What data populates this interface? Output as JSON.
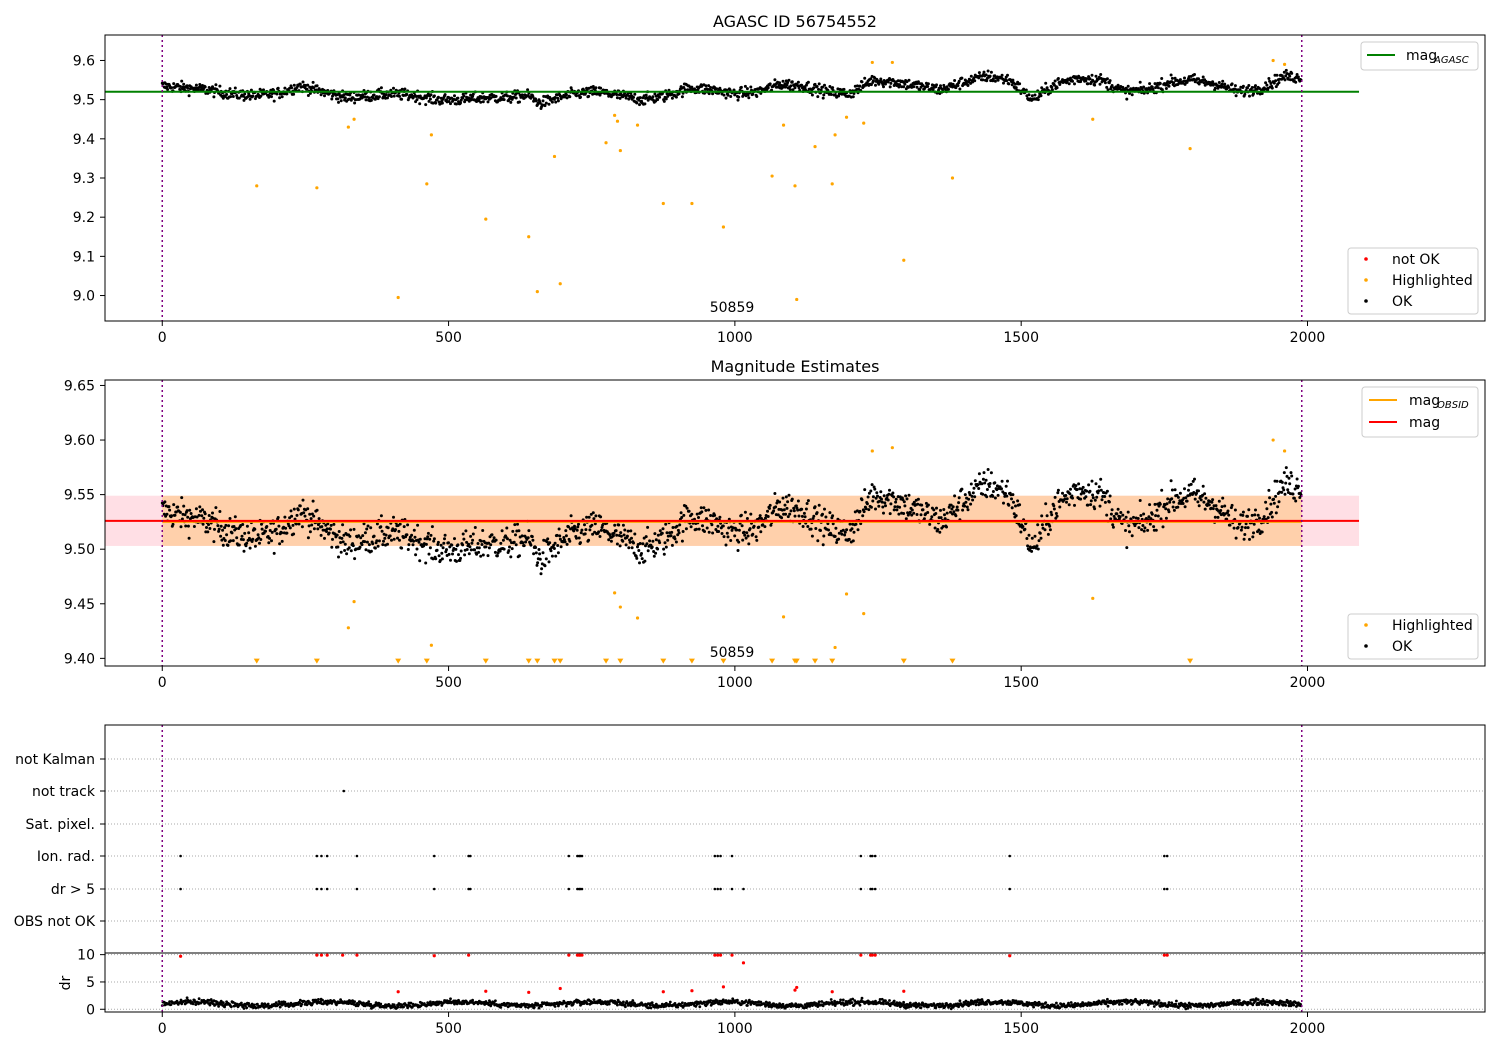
{
  "chart_data": [
    {
      "type": "scatter",
      "title": "AGASC ID 56754552",
      "xlim": [
        -100,
        2310
      ],
      "ylim": [
        8.935,
        9.665
      ],
      "x_ticks": [
        0,
        500,
        1000,
        1500,
        2000
      ],
      "y_ticks": [
        9.0,
        9.1,
        9.2,
        9.3,
        9.4,
        9.5,
        9.6
      ],
      "obsid_label": "50859",
      "obsid_label_x": 990,
      "vlines_x": [
        0,
        1990
      ],
      "hline": {
        "name": "mag_AGASC",
        "y": 9.52,
        "x_end": 2090
      },
      "legend_upper": [
        {
          "label": "mag",
          "sub": "AGASC",
          "color": "#008000",
          "marker": "line"
        }
      ],
      "legend_lower": [
        {
          "label": "not OK",
          "color": "#ff0000",
          "marker": "dot"
        },
        {
          "label": "Highlighted",
          "color": "#ffa500",
          "marker": "dot"
        },
        {
          "label": "OK",
          "color": "#000000",
          "marker": "dot"
        }
      ],
      "series": [
        {
          "name": "Highlighted",
          "color": "#ffa500",
          "points": [
            [
              165,
              9.28
            ],
            [
              270,
              9.275
            ],
            [
              325,
              9.43
            ],
            [
              335,
              9.45
            ],
            [
              412,
              8.995
            ],
            [
              462,
              9.285
            ],
            [
              470,
              9.41
            ],
            [
              565,
              9.195
            ],
            [
              640,
              9.15
            ],
            [
              655,
              9.01
            ],
            [
              685,
              9.355
            ],
            [
              695,
              9.03
            ],
            [
              775,
              9.39
            ],
            [
              790,
              9.46
            ],
            [
              795,
              9.445
            ],
            [
              800,
              9.37
            ],
            [
              830,
              9.435
            ],
            [
              875,
              9.235
            ],
            [
              925,
              9.235
            ],
            [
              980,
              9.175
            ],
            [
              1065,
              9.305
            ],
            [
              1085,
              9.435
            ],
            [
              1105,
              9.28
            ],
            [
              1108,
              8.99
            ],
            [
              1140,
              9.38
            ],
            [
              1170,
              9.285
            ],
            [
              1175,
              9.41
            ],
            [
              1195,
              9.455
            ],
            [
              1225,
              9.44
            ],
            [
              1240,
              9.595
            ],
            [
              1275,
              9.595
            ],
            [
              1295,
              9.09
            ],
            [
              1380,
              9.3
            ],
            [
              1625,
              9.45
            ],
            [
              1795,
              9.375
            ],
            [
              1940,
              9.6
            ],
            [
              1960,
              9.59
            ]
          ]
        },
        {
          "name": "OK",
          "color": "#000000",
          "baseline": [
            [
              0,
              9.535
            ],
            [
              40,
              9.53
            ],
            [
              80,
              9.525
            ],
            [
              120,
              9.515
            ],
            [
              160,
              9.51
            ],
            [
              200,
              9.515
            ],
            [
              240,
              9.535
            ],
            [
              280,
              9.52
            ],
            [
              320,
              9.505
            ],
            [
              360,
              9.51
            ],
            [
              400,
              9.515
            ],
            [
              440,
              9.51
            ],
            [
              480,
              9.5
            ],
            [
              520,
              9.5
            ],
            [
              560,
              9.505
            ],
            [
              600,
              9.505
            ],
            [
              640,
              9.51
            ],
            [
              660,
              9.49
            ],
            [
              680,
              9.5
            ],
            [
              720,
              9.515
            ],
            [
              760,
              9.52
            ],
            [
              800,
              9.51
            ],
            [
              840,
              9.5
            ],
            [
              880,
              9.51
            ],
            [
              920,
              9.53
            ],
            [
              960,
              9.525
            ],
            [
              1000,
              9.515
            ],
            [
              1040,
              9.52
            ],
            [
              1080,
              9.54
            ],
            [
              1120,
              9.535
            ],
            [
              1160,
              9.52
            ],
            [
              1200,
              9.515
            ],
            [
              1240,
              9.55
            ],
            [
              1280,
              9.545
            ],
            [
              1320,
              9.535
            ],
            [
              1360,
              9.525
            ],
            [
              1400,
              9.545
            ],
            [
              1440,
              9.56
            ],
            [
              1480,
              9.55
            ],
            [
              1520,
              9.5
            ],
            [
              1560,
              9.54
            ],
            [
              1600,
              9.555
            ],
            [
              1640,
              9.55
            ],
            [
              1680,
              9.52
            ],
            [
              1720,
              9.525
            ],
            [
              1760,
              9.545
            ],
            [
              1800,
              9.55
            ],
            [
              1840,
              9.54
            ],
            [
              1880,
              9.52
            ],
            [
              1920,
              9.53
            ],
            [
              1960,
              9.56
            ],
            [
              1990,
              9.555
            ]
          ],
          "count": 1700,
          "spread": 0.012
        }
      ]
    },
    {
      "type": "scatter",
      "title": "Magnitude Estimates",
      "xlim": [
        -100,
        2310
      ],
      "ylim": [
        9.393,
        9.655
      ],
      "x_ticks": [
        0,
        500,
        1000,
        1500,
        2000
      ],
      "y_ticks": [
        9.4,
        9.45,
        9.5,
        9.55,
        9.6,
        9.65
      ],
      "y_tick_labels": [
        "9.40",
        "9.45",
        "9.50",
        "9.55",
        "9.60",
        "9.65"
      ],
      "obsid_label": "50859",
      "obsid_label_x": 990,
      "vlines_x": [
        0,
        1990
      ],
      "mag_OBSID": 9.525,
      "mag": 9.526,
      "band": [
        9.503,
        9.549
      ],
      "band_x_end": 2090,
      "legend_upper": [
        {
          "label": "mag",
          "sub": "OBSID",
          "color": "#ffa500",
          "marker": "line"
        },
        {
          "label": "mag",
          "sub": "",
          "color": "#ff0000",
          "marker": "line"
        }
      ],
      "legend_lower": [
        {
          "label": "Highlighted",
          "color": "#ffa500",
          "marker": "dot"
        },
        {
          "label": "OK",
          "color": "#000000",
          "marker": "dot"
        }
      ],
      "highlighted_in_range": [
        [
          325,
          9.428
        ],
        [
          335,
          9.452
        ],
        [
          470,
          9.412
        ],
        [
          790,
          9.46
        ],
        [
          800,
          9.447
        ],
        [
          830,
          9.437
        ],
        [
          1085,
          9.438
        ],
        [
          1195,
          9.459
        ],
        [
          1175,
          9.41
        ],
        [
          1225,
          9.441
        ],
        [
          1240,
          9.59
        ],
        [
          1275,
          9.593
        ],
        [
          1625,
          9.455
        ],
        [
          1940,
          9.6
        ],
        [
          1960,
          9.59
        ]
      ],
      "below_range_markers_x": [
        165,
        270,
        412,
        462,
        565,
        640,
        655,
        685,
        695,
        775,
        800,
        875,
        925,
        980,
        1065,
        1105,
        1108,
        1140,
        1170,
        1295,
        1380,
        1795
      ]
    },
    {
      "type": "scatter",
      "title": "",
      "xlim": [
        -100,
        2310
      ],
      "x_ticks": [
        0,
        500,
        1000,
        1500,
        2000
      ],
      "categories": [
        "not Kalman",
        "not track",
        "Sat. pixel.",
        "Ion. rad.",
        "dr > 5",
        "OBS not OK"
      ],
      "vlines_x": [
        0,
        1990
      ],
      "flags": {
        "not track": [
          317
        ],
        "Ion. rad.": [
          32,
          270,
          278,
          288,
          340,
          475,
          535,
          538,
          710,
          725,
          728,
          730,
          733,
          965,
          970,
          975,
          995,
          1220,
          1237,
          1240,
          1245,
          1480,
          1750,
          1755
        ],
        "dr > 5": [
          32,
          270,
          278,
          288,
          340,
          475,
          535,
          538,
          710,
          725,
          728,
          730,
          733,
          965,
          970,
          975,
          995,
          1015,
          1220,
          1237,
          1240,
          1245,
          1480,
          1750,
          1755
        ]
      },
      "dr_panel": {
        "ylabel": "dr",
        "ylim": [
          -0.5,
          10.3
        ],
        "y_ticks": [
          0,
          5,
          10
        ],
        "red_points": [
          [
            32,
            9.7
          ],
          [
            270,
            9.9
          ],
          [
            278,
            9.9
          ],
          [
            288,
            9.9
          ],
          [
            315,
            9.9
          ],
          [
            340,
            9.9
          ],
          [
            412,
            3.2
          ],
          [
            475,
            9.8
          ],
          [
            535,
            9.9
          ],
          [
            565,
            3.3
          ],
          [
            640,
            3.1
          ],
          [
            695,
            3.8
          ],
          [
            710,
            9.9
          ],
          [
            725,
            9.9
          ],
          [
            728,
            9.9
          ],
          [
            730,
            9.9
          ],
          [
            733,
            9.9
          ],
          [
            875,
            3.2
          ],
          [
            925,
            3.4
          ],
          [
            965,
            9.9
          ],
          [
            970,
            9.9
          ],
          [
            975,
            9.9
          ],
          [
            980,
            4.1
          ],
          [
            995,
            9.9
          ],
          [
            1015,
            8.5
          ],
          [
            1105,
            3.5
          ],
          [
            1108,
            4.0
          ],
          [
            1170,
            3.2
          ],
          [
            1220,
            9.9
          ],
          [
            1237,
            9.9
          ],
          [
            1240,
            9.9
          ],
          [
            1245,
            9.9
          ],
          [
            1295,
            3.3
          ],
          [
            1480,
            9.8
          ],
          [
            1750,
            9.9
          ],
          [
            1755,
            9.9
          ]
        ],
        "baseline_level": 1.0,
        "count": 1700
      }
    }
  ]
}
